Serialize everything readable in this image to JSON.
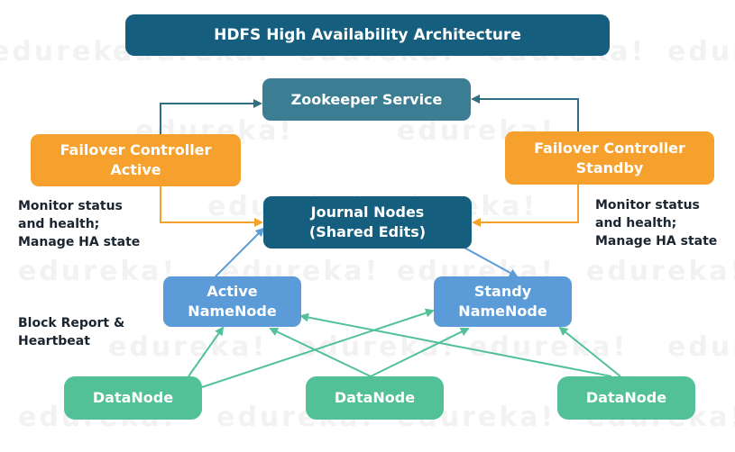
{
  "title": "HDFS High Availability Architecture",
  "zookeeper": "Zookeeper Service",
  "failover_active": {
    "line1": "Failover Controller",
    "line2": "Active"
  },
  "failover_standby": {
    "line1": "Failover Controller",
    "line2": "Standby"
  },
  "journal": {
    "line1": "Journal Nodes",
    "line2": "(Shared Edits)"
  },
  "namenode_active": {
    "line1": "Active",
    "line2": "NameNode"
  },
  "namenode_standby": {
    "line1": "Standy",
    "line2": "NameNode"
  },
  "datanodes": [
    "DataNode",
    "DataNode",
    "DataNode"
  ],
  "monitor_left": [
    "Monitor status",
    "and health;",
    "Manage HA state"
  ],
  "monitor_right": [
    "Monitor status",
    "and health;",
    "Manage HA state"
  ],
  "block_report": [
    "Block Report &",
    "Heartbeat"
  ],
  "watermark": "edureka!",
  "colors": {
    "title": "#155e7e",
    "zookeeper": "#3b7d93",
    "failover": "#f6a12d",
    "journal": "#155e7e",
    "namenode": "#5b9bd8",
    "datanode": "#52c198",
    "arrow_zk": "#2f6f84",
    "arrow_orange": "#f6a12d",
    "arrow_blue": "#5b9bd8",
    "arrow_green": "#52c198"
  }
}
